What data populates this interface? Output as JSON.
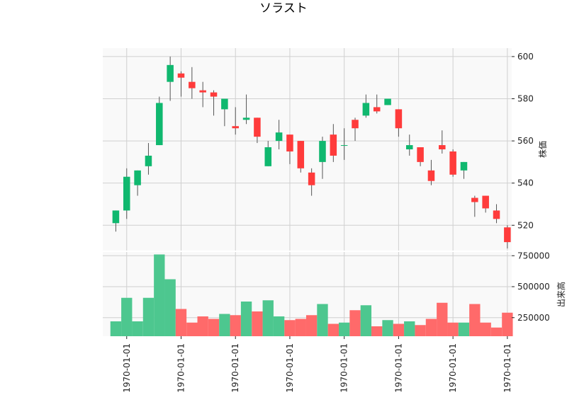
{
  "chart_data": {
    "type": "candlestick",
    "title": "ソラスト",
    "y_label_price": "株価",
    "y_label_volume": "出来高",
    "price_ylim": [
      508,
      604
    ],
    "price_ticks": [
      520,
      540,
      560,
      580,
      600
    ],
    "volume_ylim": [
      100000,
      780000
    ],
    "volume_ticks": [
      250000,
      500000,
      750000
    ],
    "volume_tick_labels": [
      "250000",
      "500000",
      "750000"
    ],
    "x_tick_labels": [
      "1970-01-01",
      "1970-01-01",
      "1970-01-01",
      "1970-01-01",
      "1970-01-01",
      "1970-01-01",
      "1970-01-01",
      "1970-01-01"
    ],
    "x_tick_positions": [
      1,
      6,
      11,
      16,
      21,
      26,
      31,
      36
    ],
    "colors": {
      "up": "#10b86f",
      "down": "#ff3b3b",
      "up_volume": "#4dc78f",
      "down_volume": "#ff6a6a"
    },
    "candles": [
      {
        "open": 521,
        "high": 527,
        "low": 517,
        "close": 527,
        "volume": 220000
      },
      {
        "open": 527,
        "high": 547,
        "low": 523,
        "close": 543,
        "volume": 410000
      },
      {
        "open": 539,
        "high": 546,
        "low": 534,
        "close": 546,
        "volume": 220000
      },
      {
        "open": 548,
        "high": 559,
        "low": 544,
        "close": 553,
        "volume": 410000
      },
      {
        "open": 558,
        "high": 581,
        "low": 558,
        "close": 578,
        "volume": 760000
      },
      {
        "open": 588,
        "high": 600,
        "low": 579,
        "close": 596,
        "volume": 560000
      },
      {
        "open": 592,
        "high": 593,
        "low": 581,
        "close": 590,
        "volume": 320000
      },
      {
        "open": 588,
        "high": 595,
        "low": 580,
        "close": 585,
        "volume": 210000
      },
      {
        "open": 584,
        "high": 588,
        "low": 576,
        "close": 583,
        "volume": 260000
      },
      {
        "open": 583,
        "high": 584,
        "low": 572,
        "close": 581,
        "volume": 240000
      },
      {
        "open": 575,
        "high": 580,
        "low": 567,
        "close": 580,
        "volume": 280000
      },
      {
        "open": 567,
        "high": 576,
        "low": 563,
        "close": 566,
        "volume": 270000
      },
      {
        "open": 570,
        "high": 582,
        "low": 568,
        "close": 571,
        "volume": 380000
      },
      {
        "open": 571,
        "high": 571,
        "low": 559,
        "close": 562,
        "volume": 300000
      },
      {
        "open": 548,
        "high": 560,
        "low": 548,
        "close": 557,
        "volume": 390000
      },
      {
        "open": 560,
        "high": 570,
        "low": 556,
        "close": 564,
        "volume": 260000
      },
      {
        "open": 563,
        "high": 563,
        "low": 549,
        "close": 555,
        "volume": 230000
      },
      {
        "open": 560,
        "high": 560,
        "low": 545,
        "close": 547,
        "volume": 240000
      },
      {
        "open": 545,
        "high": 547,
        "low": 534,
        "close": 539,
        "volume": 270000
      },
      {
        "open": 550,
        "high": 562,
        "low": 542,
        "close": 560,
        "volume": 360000
      },
      {
        "open": 563,
        "high": 568,
        "low": 550,
        "close": 553,
        "volume": 200000
      },
      {
        "open": 558,
        "high": 566,
        "low": 551,
        "close": 558,
        "volume": 210000
      },
      {
        "open": 570,
        "high": 571,
        "low": 560,
        "close": 566,
        "volume": 310000
      },
      {
        "open": 572,
        "high": 582,
        "low": 571,
        "close": 578,
        "volume": 350000
      },
      {
        "open": 576,
        "high": 582,
        "low": 573,
        "close": 574,
        "volume": 180000
      },
      {
        "open": 577,
        "high": 580,
        "low": 577,
        "close": 580,
        "volume": 230000
      },
      {
        "open": 575,
        "high": 575,
        "low": 562,
        "close": 566,
        "volume": 200000
      },
      {
        "open": 556,
        "high": 563,
        "low": 553,
        "close": 558,
        "volume": 220000
      },
      {
        "open": 557,
        "high": 557,
        "low": 548,
        "close": 550,
        "volume": 190000
      },
      {
        "open": 546,
        "high": 551,
        "low": 539,
        "close": 541,
        "volume": 240000
      },
      {
        "open": 558,
        "high": 565,
        "low": 554,
        "close": 556,
        "volume": 370000
      },
      {
        "open": 555,
        "high": 556,
        "low": 543,
        "close": 544,
        "volume": 210000
      },
      {
        "open": 546,
        "high": 550,
        "low": 542,
        "close": 550,
        "volume": 210000
      },
      {
        "open": 533,
        "high": 534,
        "low": 524,
        "close": 531,
        "volume": 360000
      },
      {
        "open": 534,
        "high": 534,
        "low": 526,
        "close": 528,
        "volume": 210000
      },
      {
        "open": 527,
        "high": 530,
        "low": 521,
        "close": 523,
        "volume": 170000
      },
      {
        "open": 519,
        "high": 520,
        "low": 509,
        "close": 512,
        "volume": 290000
      }
    ]
  }
}
